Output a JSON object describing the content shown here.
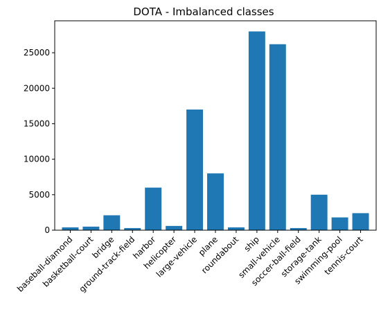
{
  "chart_data": {
    "type": "bar",
    "title": "DOTA - Imbalanced classes",
    "xlabel": "",
    "ylabel": "",
    "categories": [
      "baseball-diamond",
      "basketball-court",
      "bridge",
      "ground-track-field",
      "harbor",
      "helicopter",
      "large-vehicle",
      "plane",
      "roundabout",
      "ship",
      "small-vehicle",
      "soccer-ball-field",
      "storage-tank",
      "swimming-pool",
      "tennis-court"
    ],
    "values": [
      400,
      500,
      2100,
      300,
      6000,
      600,
      17000,
      8000,
      400,
      28000,
      26200,
      300,
      5000,
      1800,
      2400
    ],
    "ylim": [
      0,
      29500
    ],
    "yticks": [
      0,
      5000,
      10000,
      15000,
      20000,
      25000
    ],
    "bar_color": "#1f77b4",
    "grid": false,
    "legend": "none"
  }
}
